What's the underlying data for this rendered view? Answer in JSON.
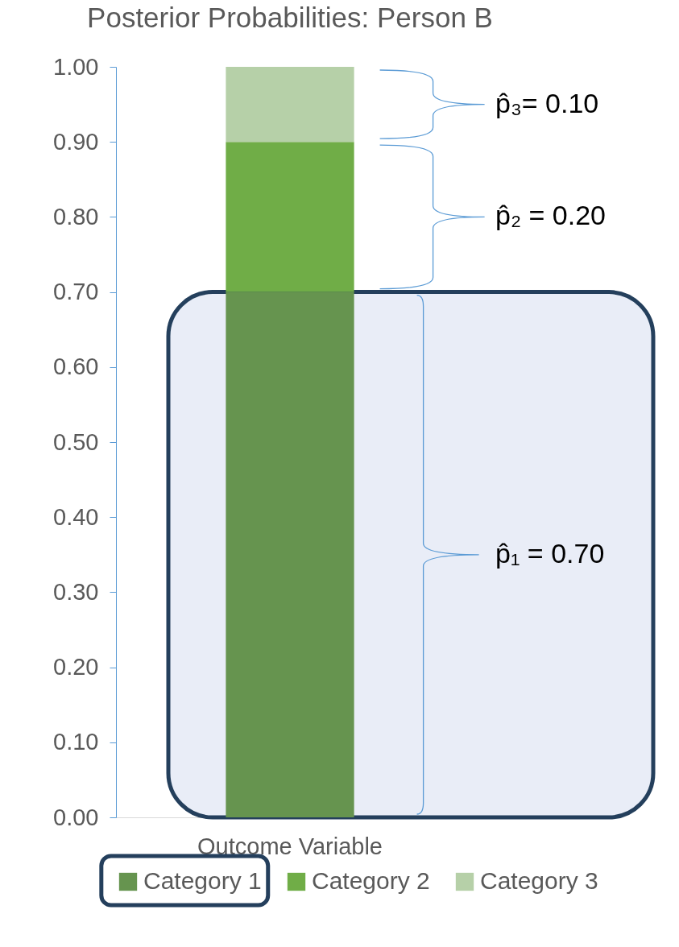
{
  "chart_data": {
    "type": "bar",
    "stacked": true,
    "title": "Posterior Probabilities: Person B",
    "categories": [
      "Outcome Variable"
    ],
    "series": [
      {
        "name": "Category 1",
        "color": "#66944f",
        "values": [
          0.7
        ]
      },
      {
        "name": "Category 2",
        "color": "#70ad47",
        "values": [
          0.2
        ]
      },
      {
        "name": "Category 3",
        "color": "#b6d0a8",
        "values": [
          0.1
        ]
      }
    ],
    "ylim": [
      0,
      1
    ],
    "yticks": [
      {
        "value": 0,
        "label": "0.00"
      },
      {
        "value": 0.1,
        "label": "0.10"
      },
      {
        "value": 0.2,
        "label": "0.20"
      },
      {
        "value": 0.3,
        "label": "0.30"
      },
      {
        "value": 0.4,
        "label": "0.40"
      },
      {
        "value": 0.5,
        "label": "0.50"
      },
      {
        "value": 0.6,
        "label": "0.60"
      },
      {
        "value": 0.7,
        "label": "0.70"
      },
      {
        "value": 0.8,
        "label": "0.80"
      },
      {
        "value": 0.9,
        "label": "0.90"
      },
      {
        "value": 1,
        "label": "1.00"
      }
    ],
    "annotations": [
      "p̂₃= 0.10",
      "p̂₂ = 0.20",
      "p̂₁ = 0.70"
    ],
    "bands": [
      {
        "axis": "y",
        "from": 0,
        "to": 0.7,
        "color": "#e9edf7"
      }
    ],
    "grid": false,
    "legend": "bottom"
  }
}
